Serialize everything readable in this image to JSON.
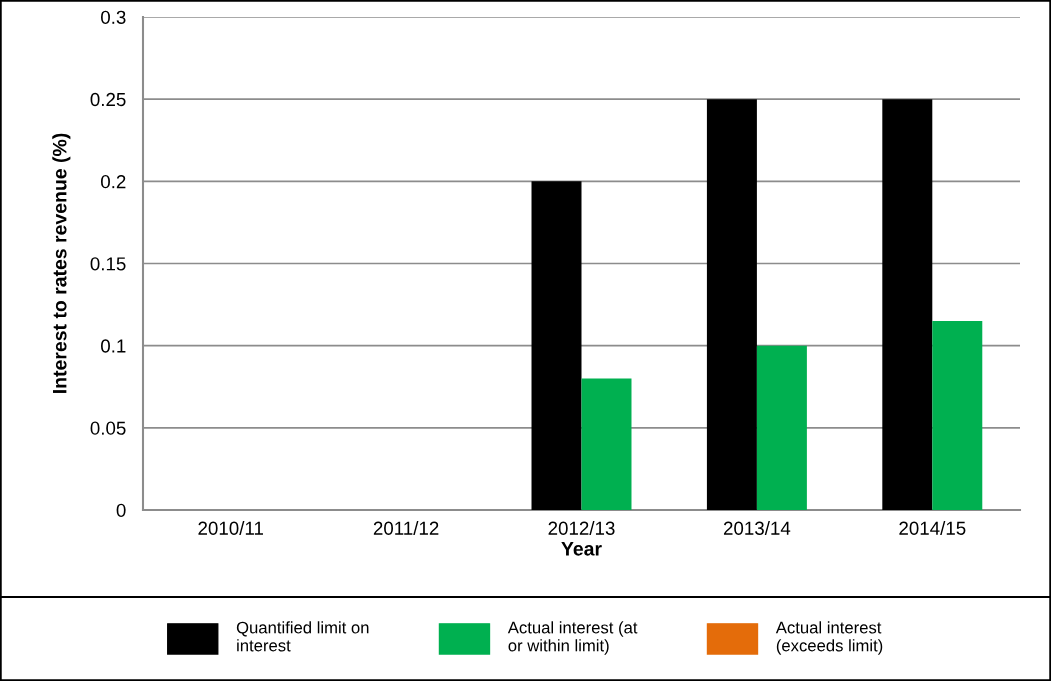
{
  "chart_data": {
    "type": "bar",
    "ylabel": "Interest to rates revenue (%)",
    "xlabel": "Year",
    "categories": [
      "2010/11",
      "2011/12",
      "2012/13",
      "2013/14",
      "2014/15"
    ],
    "series": [
      {
        "name": "Quantified limit on\ninterest",
        "color": "#000000",
        "values": [
          null,
          null,
          0.2,
          0.25,
          0.25
        ]
      },
      {
        "name": "Actual interest (at\nor within limit)",
        "color": "#00b050",
        "values": [
          null,
          null,
          0.08,
          0.1,
          0.115
        ]
      },
      {
        "name": "Actual interest\n(exceeds limit)",
        "color": "#e46c0a",
        "values": [
          null,
          null,
          null,
          null,
          null
        ]
      }
    ],
    "ylim": [
      0,
      0.3
    ],
    "yticks": [
      0,
      0.05,
      0.1,
      0.15,
      0.2,
      0.25,
      0.3
    ],
    "grid": "y",
    "legend": "bottom"
  }
}
